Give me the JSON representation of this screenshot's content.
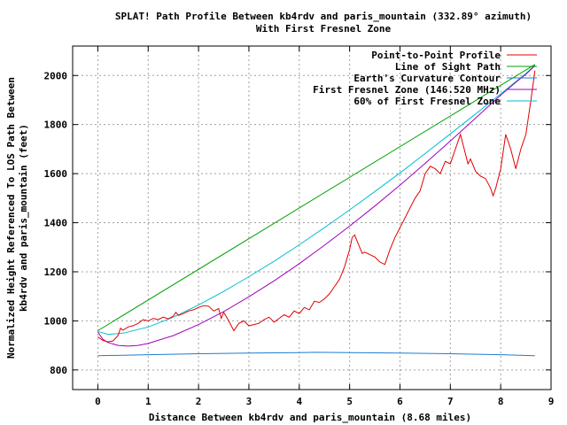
{
  "chart_data": {
    "type": "line",
    "title_line1": "SPLAT! Path Profile Between kb4rdv and paris_mountain (332.89° azimuth)",
    "title_line2": "With First Fresnel Zone",
    "xlabel": "Distance Between kb4rdv and paris_mountain (8.68 miles)",
    "ylabel_line1": "Normalized Height Referenced To LOS Path Between",
    "ylabel_line2": "kb4rdv and paris_mountain (feet)",
    "xlim": [
      -0.5,
      9
    ],
    "ylim": [
      720,
      2120
    ],
    "xticks": [
      0,
      1,
      2,
      3,
      4,
      5,
      6,
      7,
      8,
      9
    ],
    "yticks": [
      800,
      1000,
      1200,
      1400,
      1600,
      1800,
      2000
    ],
    "grid": true,
    "legend_position": "top-right",
    "series": [
      {
        "name": "Point-to-Point Profile",
        "color": "#e00000",
        "x": [
          0,
          0.1,
          0.2,
          0.3,
          0.4,
          0.45,
          0.5,
          0.6,
          0.7,
          0.8,
          0.9,
          1.0,
          1.1,
          1.2,
          1.3,
          1.4,
          1.5,
          1.55,
          1.6,
          1.7,
          1.8,
          1.9,
          2.0,
          2.1,
          2.2,
          2.3,
          2.4,
          2.45,
          2.5,
          2.6,
          2.7,
          2.8,
          2.9,
          3.0,
          3.1,
          3.2,
          3.3,
          3.4,
          3.5,
          3.6,
          3.7,
          3.8,
          3.9,
          4.0,
          4.1,
          4.2,
          4.3,
          4.4,
          4.5,
          4.6,
          4.7,
          4.8,
          4.9,
          5.0,
          5.05,
          5.1,
          5.2,
          5.25,
          5.3,
          5.4,
          5.5,
          5.6,
          5.7,
          5.8,
          5.9,
          6.0,
          6.1,
          6.2,
          6.3,
          6.4,
          6.5,
          6.6,
          6.7,
          6.8,
          6.9,
          7.0,
          7.1,
          7.2,
          7.3,
          7.35,
          7.4,
          7.5,
          7.6,
          7.7,
          7.8,
          7.85,
          7.9,
          8.0,
          8.1,
          8.2,
          8.3,
          8.4,
          8.5,
          8.6,
          8.68
        ],
        "y": [
          935,
          920,
          915,
          918,
          940,
          970,
          962,
          975,
          980,
          990,
          1005,
          1000,
          1010,
          1005,
          1015,
          1008,
          1020,
          1035,
          1022,
          1030,
          1040,
          1045,
          1055,
          1062,
          1060,
          1040,
          1050,
          1010,
          1035,
          1000,
          960,
          990,
          1000,
          980,
          985,
          990,
          1005,
          1015,
          995,
          1010,
          1025,
          1015,
          1040,
          1030,
          1055,
          1045,
          1080,
          1075,
          1090,
          1110,
          1140,
          1170,
          1220,
          1290,
          1340,
          1350,
          1300,
          1275,
          1280,
          1270,
          1260,
          1240,
          1230,
          1290,
          1340,
          1380,
          1420,
          1460,
          1500,
          1530,
          1600,
          1630,
          1620,
          1600,
          1650,
          1640,
          1700,
          1760,
          1680,
          1640,
          1660,
          1610,
          1590,
          1580,
          1540,
          1510,
          1540,
          1620,
          1760,
          1700,
          1620,
          1700,
          1760,
          1900,
          2020
        ]
      },
      {
        "name": "Line of Sight Path",
        "color": "#00a000",
        "x": [
          0,
          8.68
        ],
        "y": [
          960,
          2045
        ]
      },
      {
        "name": "Earth's Curvature Contour",
        "color": "#1e7ccf",
        "x": [
          0,
          1,
          2,
          3,
          4,
          4.34,
          5,
          6,
          7,
          8,
          8.68
        ],
        "y": [
          858,
          862,
          866,
          869,
          871,
          872,
          871,
          869,
          866,
          862,
          858
        ]
      },
      {
        "name": "First Fresnel Zone (146.520 MHz)",
        "color": "#a000c0",
        "x": [
          0,
          0.1,
          0.2,
          0.4,
          0.6,
          0.8,
          1,
          1.5,
          2,
          2.5,
          3,
          3.5,
          4,
          4.5,
          5,
          5.5,
          6,
          6.5,
          7,
          7.5,
          8,
          8.3,
          8.5,
          8.68
        ],
        "y": [
          955,
          925,
          912,
          900,
          897,
          900,
          908,
          940,
          985,
          1038,
          1098,
          1163,
          1233,
          1308,
          1386,
          1468,
          1553,
          1642,
          1733,
          1826,
          1920,
          1972,
          2005,
          2040
        ]
      },
      {
        "name": "60% of First Fresnel Zone",
        "color": "#00c0d0",
        "x": [
          0,
          0.2,
          0.5,
          1,
          1.5,
          2,
          2.5,
          3,
          3.5,
          4,
          4.5,
          5,
          5.5,
          6,
          6.5,
          7,
          7.5,
          8,
          8.3,
          8.5,
          8.68
        ],
        "y": [
          957,
          945,
          950,
          975,
          1015,
          1065,
          1120,
          1180,
          1243,
          1310,
          1380,
          1452,
          1527,
          1603,
          1682,
          1762,
          1843,
          1925,
          1975,
          2008,
          2042
        ]
      }
    ]
  }
}
